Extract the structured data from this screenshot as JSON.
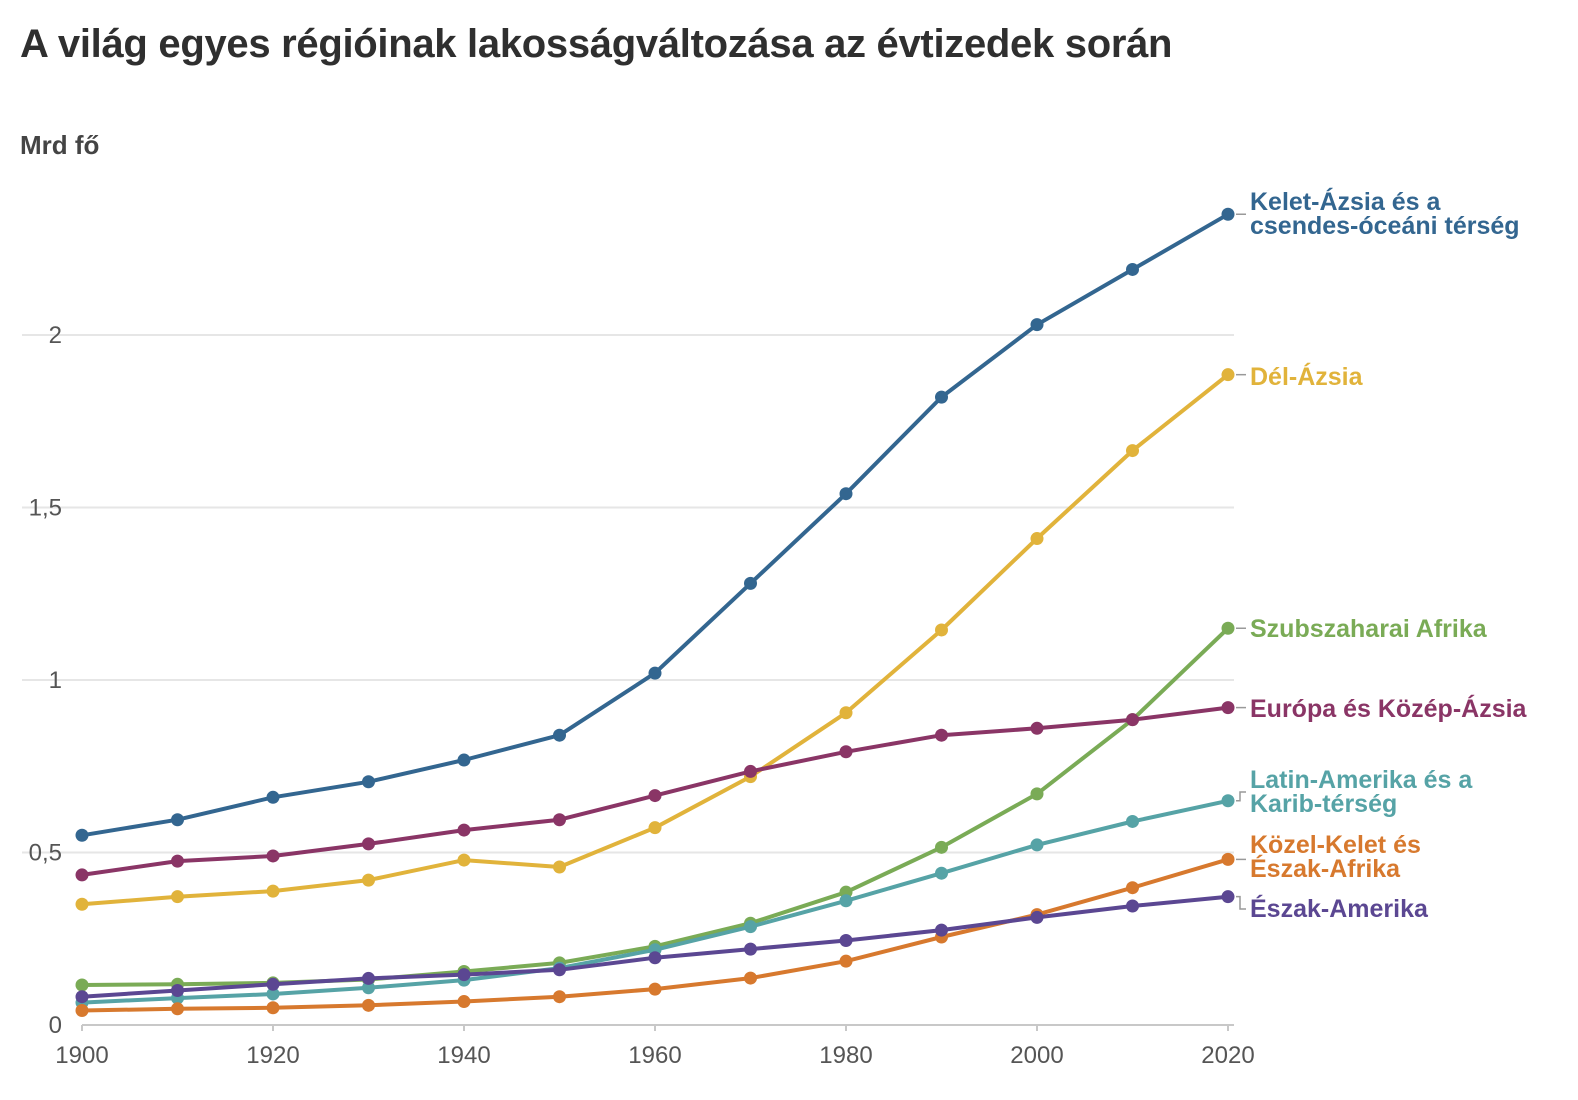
{
  "chart_data": {
    "type": "line",
    "title": "A világ egyes régióinak lakosságváltozása az évtizedek során",
    "ylabel": "Mrd fő",
    "xlabel": "",
    "x": [
      1900,
      1910,
      1920,
      1930,
      1940,
      1950,
      1960,
      1970,
      1980,
      1990,
      2000,
      2010,
      2020
    ],
    "xlim": [
      1900,
      2020
    ],
    "ylim": [
      0,
      2.5
    ],
    "grid": true,
    "x_ticks": [
      {
        "value": 1900,
        "label": "1900"
      },
      {
        "value": 1920,
        "label": "1920"
      },
      {
        "value": 1940,
        "label": "1940"
      },
      {
        "value": 1960,
        "label": "1960"
      },
      {
        "value": 1980,
        "label": "1980"
      },
      {
        "value": 2000,
        "label": "2000"
      },
      {
        "value": 2020,
        "label": "2020"
      }
    ],
    "y_ticks": [
      {
        "value": 0,
        "label": "0"
      },
      {
        "value": 0.5,
        "label": "0,5"
      },
      {
        "value": 1,
        "label": "1"
      },
      {
        "value": 1.5,
        "label": "1,5"
      },
      {
        "value": 2,
        "label": "2"
      }
    ],
    "series": [
      {
        "key": "kelet-azsia",
        "name": "Kelet-Ázsia és a csendes-óceáni térség",
        "label_lines": [
          "Kelet-Ázsia és a",
          "csendes-óceáni térség"
        ],
        "color": "#336690",
        "values": [
          0.55,
          0.595,
          0.66,
          0.705,
          0.768,
          0.84,
          1.02,
          1.28,
          1.54,
          1.82,
          2.03,
          2.19,
          2.35
        ]
      },
      {
        "key": "del-azsia",
        "name": "Dél-Ázsia",
        "label_lines": [
          "Dél-Ázsia"
        ],
        "color": "#e1b33b",
        "values": [
          0.35,
          0.372,
          0.388,
          0.42,
          0.478,
          0.458,
          0.572,
          0.72,
          0.905,
          1.145,
          1.41,
          1.665,
          1.885
        ]
      },
      {
        "key": "szubszaharai",
        "name": "Szubszaharai Afrika",
        "label_lines": [
          "Szubszaharai Afrika"
        ],
        "color": "#7aab56",
        "values": [
          0.116,
          0.118,
          0.122,
          0.132,
          0.155,
          0.18,
          0.228,
          0.295,
          0.385,
          0.515,
          0.67,
          0.885,
          1.15
        ]
      },
      {
        "key": "europa",
        "name": "Európa és Közép-Ázsia",
        "label_lines": [
          "Európa és Közép-Ázsia"
        ],
        "color": "#8a3566",
        "values": [
          0.435,
          0.475,
          0.49,
          0.525,
          0.565,
          0.595,
          0.665,
          0.735,
          0.792,
          0.84,
          0.86,
          0.885,
          0.92
        ]
      },
      {
        "key": "latin-amerika",
        "name": "Latin-Amerika és a Karib-térség",
        "label_lines": [
          "Latin-Amerika és a",
          "Karib-térség"
        ],
        "color": "#56a3a6",
        "values": [
          0.065,
          0.078,
          0.09,
          0.108,
          0.13,
          0.165,
          0.218,
          0.285,
          0.36,
          0.44,
          0.522,
          0.59,
          0.65
        ]
      },
      {
        "key": "kozel-kelet",
        "name": "Közel-Kelet és Észak-Afrika",
        "label_lines": [
          "Közel-Kelet és",
          "Észak-Afrika"
        ],
        "color": "#d7792e",
        "values": [
          0.042,
          0.047,
          0.05,
          0.057,
          0.068,
          0.082,
          0.104,
          0.136,
          0.185,
          0.255,
          0.32,
          0.398,
          0.48
        ]
      },
      {
        "key": "eszak-amerika",
        "name": "Észak-Amerika",
        "label_lines": [
          "Észak-Amerika"
        ],
        "color": "#5b4792",
        "values": [
          0.082,
          0.1,
          0.118,
          0.135,
          0.146,
          0.16,
          0.195,
          0.22,
          0.245,
          0.275,
          0.312,
          0.345,
          0.372
        ]
      }
    ]
  }
}
